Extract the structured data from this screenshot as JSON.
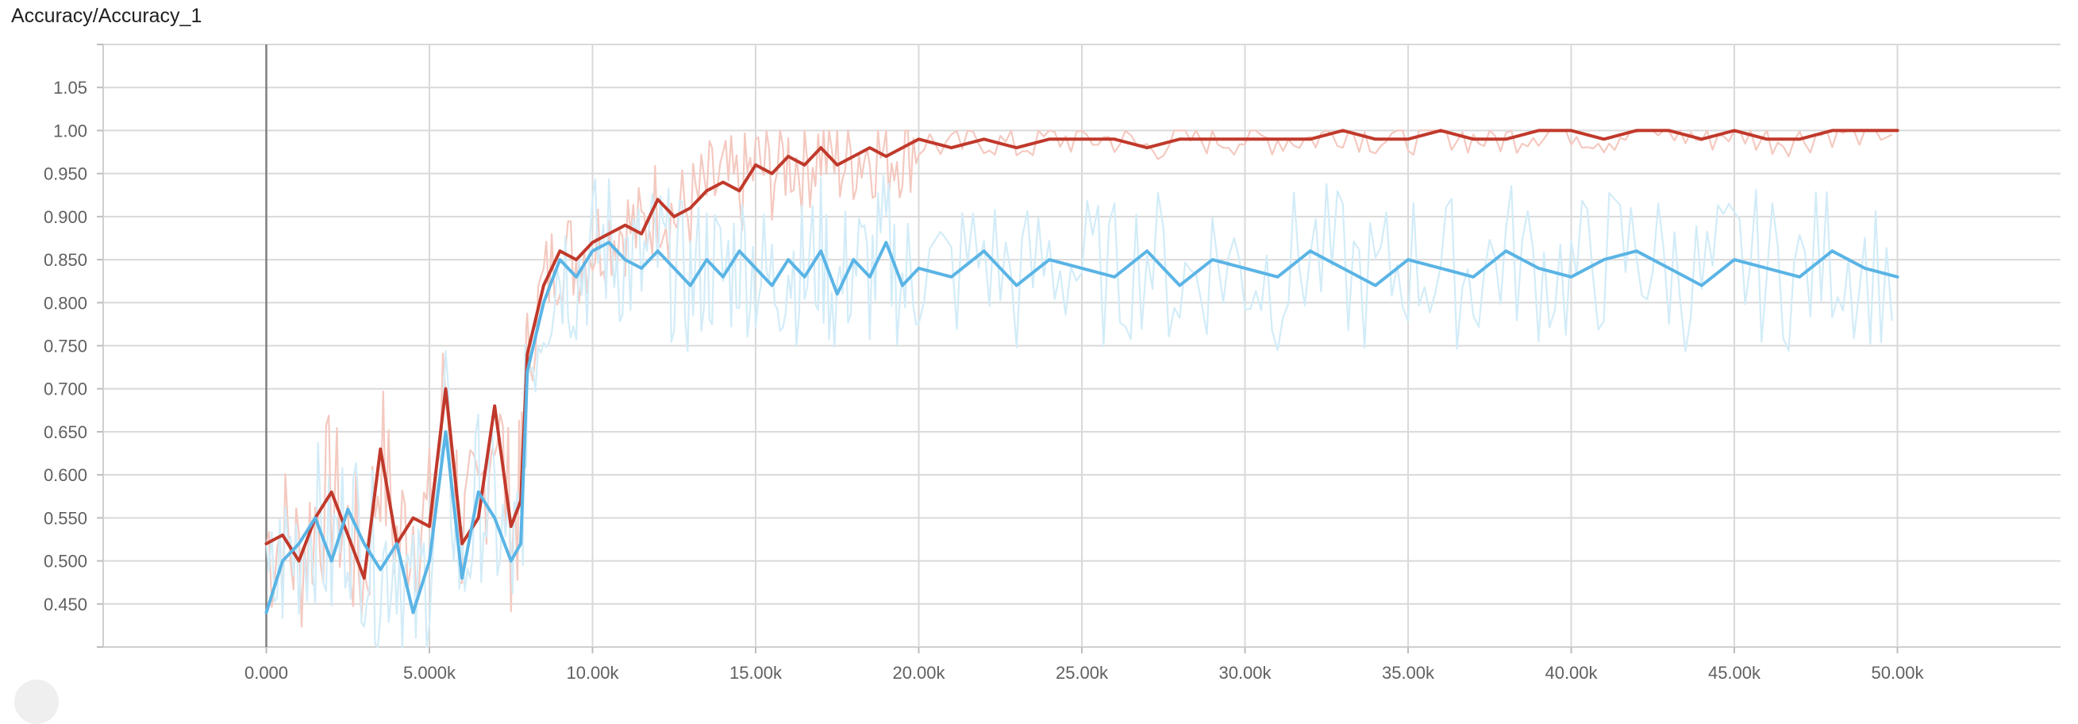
{
  "card": {
    "title": "Accuracy/Accuracy_1"
  },
  "colors": {
    "train": "#c0392b",
    "train_raw": "#f4c9c0",
    "val": "#5ab4e5",
    "val_raw": "#d2ecf8",
    "grid": "#d9d9d9",
    "zero_line": "#7f7f7f"
  },
  "chart_data": {
    "type": "line",
    "title": "Accuracy/Accuracy_1",
    "xlabel": "",
    "ylabel": "",
    "xlim": [
      -5000,
      55000
    ],
    "ylim": [
      0.4,
      1.1
    ],
    "x_ticks": [
      "0.000",
      "5.000k",
      "10.00k",
      "15.00k",
      "20.00k",
      "25.00k",
      "30.00k",
      "35.00k",
      "40.00k",
      "45.00k",
      "50.00k"
    ],
    "x_tick_values": [
      0,
      5000,
      10000,
      15000,
      20000,
      25000,
      30000,
      35000,
      40000,
      45000,
      50000
    ],
    "y_ticks": [
      "0.450",
      "0.500",
      "0.550",
      "0.600",
      "0.650",
      "0.700",
      "0.750",
      "0.800",
      "0.850",
      "0.900",
      "0.950",
      "1.00",
      "1.05"
    ],
    "y_tick_values": [
      0.45,
      0.5,
      0.55,
      0.6,
      0.65,
      0.7,
      0.75,
      0.8,
      0.85,
      0.9,
      0.95,
      1.0,
      1.05
    ],
    "grid": true,
    "series": [
      {
        "color": "#c0392b",
        "x": [
          0,
          500,
          1000,
          1500,
          2000,
          2500,
          3000,
          3500,
          4000,
          4500,
          5000,
          5500,
          6000,
          6500,
          7000,
          7500,
          7800,
          8000,
          8500,
          9000,
          9500,
          10000,
          10500,
          11000,
          11500,
          12000,
          12500,
          13000,
          13500,
          14000,
          14500,
          15000,
          15500,
          16000,
          16500,
          17000,
          17500,
          18000,
          18500,
          19000,
          19500,
          20000,
          21000,
          22000,
          23000,
          24000,
          25000,
          26000,
          27000,
          28000,
          29000,
          30000,
          31000,
          32000,
          33000,
          34000,
          35000,
          36000,
          37000,
          38000,
          39000,
          40000,
          41000,
          42000,
          43000,
          44000,
          45000,
          46000,
          47000,
          48000,
          49000,
          50000
        ],
        "y": [
          0.52,
          0.53,
          0.5,
          0.55,
          0.58,
          0.53,
          0.48,
          0.63,
          0.52,
          0.55,
          0.54,
          0.7,
          0.52,
          0.55,
          0.68,
          0.54,
          0.57,
          0.74,
          0.82,
          0.86,
          0.85,
          0.87,
          0.88,
          0.89,
          0.88,
          0.92,
          0.9,
          0.91,
          0.93,
          0.94,
          0.93,
          0.96,
          0.95,
          0.97,
          0.96,
          0.98,
          0.96,
          0.97,
          0.98,
          0.97,
          0.98,
          0.99,
          0.98,
          0.99,
          0.98,
          0.99,
          0.99,
          0.99,
          0.98,
          0.99,
          0.99,
          0.99,
          0.99,
          0.99,
          1.0,
          0.99,
          0.99,
          1.0,
          0.99,
          0.99,
          1.0,
          1.0,
          0.99,
          1.0,
          1.0,
          0.99,
          1.0,
          0.99,
          0.99,
          1.0,
          1.0,
          1.0
        ]
      },
      {
        "color": "#5ab4e5",
        "x": [
          0,
          500,
          1000,
          1500,
          2000,
          2500,
          3000,
          3500,
          4000,
          4500,
          5000,
          5500,
          6000,
          6500,
          7000,
          7500,
          7800,
          8000,
          8500,
          9000,
          9500,
          10000,
          10500,
          11000,
          11500,
          12000,
          12500,
          13000,
          13500,
          14000,
          14500,
          15000,
          15500,
          16000,
          16500,
          17000,
          17500,
          18000,
          18500,
          19000,
          19500,
          20000,
          21000,
          22000,
          23000,
          24000,
          25000,
          26000,
          27000,
          28000,
          29000,
          30000,
          31000,
          32000,
          33000,
          34000,
          35000,
          36000,
          37000,
          38000,
          39000,
          40000,
          41000,
          42000,
          43000,
          44000,
          45000,
          46000,
          47000,
          48000,
          49000,
          50000
        ],
        "y": [
          0.44,
          0.5,
          0.52,
          0.55,
          0.5,
          0.56,
          0.52,
          0.49,
          0.52,
          0.44,
          0.5,
          0.65,
          0.48,
          0.58,
          0.55,
          0.5,
          0.52,
          0.72,
          0.8,
          0.85,
          0.83,
          0.86,
          0.87,
          0.85,
          0.84,
          0.86,
          0.84,
          0.82,
          0.85,
          0.83,
          0.86,
          0.84,
          0.82,
          0.85,
          0.83,
          0.86,
          0.81,
          0.85,
          0.83,
          0.87,
          0.82,
          0.84,
          0.83,
          0.86,
          0.82,
          0.85,
          0.84,
          0.83,
          0.86,
          0.82,
          0.85,
          0.84,
          0.83,
          0.86,
          0.84,
          0.82,
          0.85,
          0.84,
          0.83,
          0.86,
          0.84,
          0.83,
          0.85,
          0.86,
          0.84,
          0.82,
          0.85,
          0.84,
          0.83,
          0.86,
          0.84,
          0.83
        ]
      }
    ]
  }
}
